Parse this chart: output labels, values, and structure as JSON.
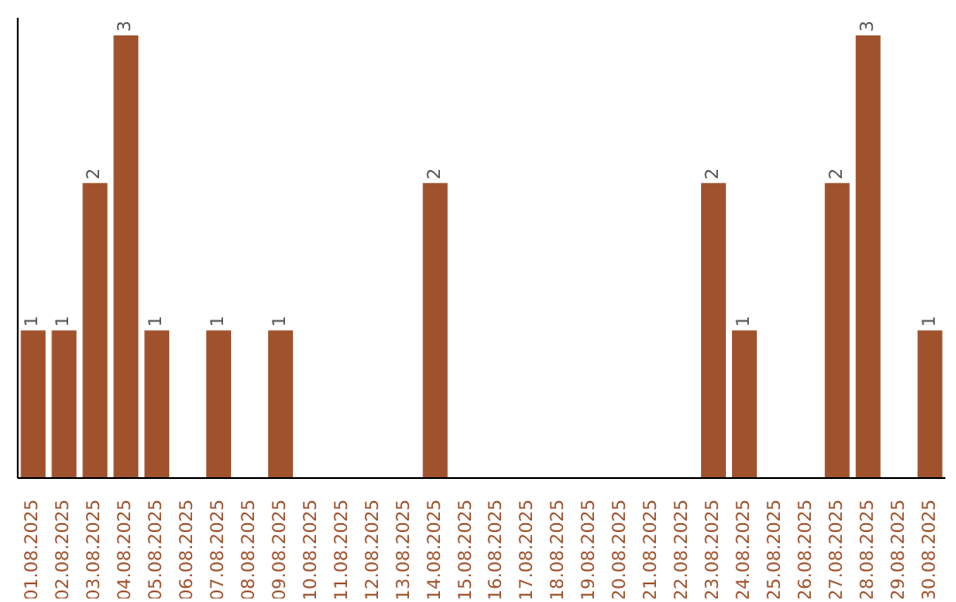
{
  "chart_data": {
    "type": "bar",
    "categories": [
      "01.08.2025",
      "02.08.2025",
      "03.08.2025",
      "04.08.2025",
      "05.08.2025",
      "06.08.2025",
      "07.08.2025",
      "08.08.2025",
      "09.08.2025",
      "10.08.2025",
      "11.08.2025",
      "12.08.2025",
      "13.08.2025",
      "14.08.2025",
      "15.08.2025",
      "16.08.2025",
      "17.08.2025",
      "18.08.2025",
      "19.08.2025",
      "20.08.2025",
      "21.08.2025",
      "22.08.2025",
      "23.08.2025",
      "24.08.2025",
      "25.08.2025",
      "26.08.2025",
      "27.08.2025",
      "28.08.2025",
      "29.08.2025",
      "30.08.2025"
    ],
    "values": [
      1,
      1,
      2,
      3,
      1,
      0,
      1,
      0,
      1,
      0,
      0,
      0,
      0,
      2,
      0,
      0,
      0,
      0,
      0,
      0,
      0,
      0,
      2,
      1,
      0,
      0,
      2,
      3,
      0,
      1
    ],
    "value_labels": [
      "1",
      "1",
      "2",
      "3",
      "1",
      null,
      "1",
      null,
      "1",
      null,
      null,
      null,
      null,
      "2",
      null,
      null,
      null,
      null,
      null,
      null,
      null,
      null,
      "2",
      "1",
      null,
      null,
      "2",
      "3",
      null,
      "1"
    ],
    "color": "#a0522d",
    "tick_labels": "x"
  }
}
